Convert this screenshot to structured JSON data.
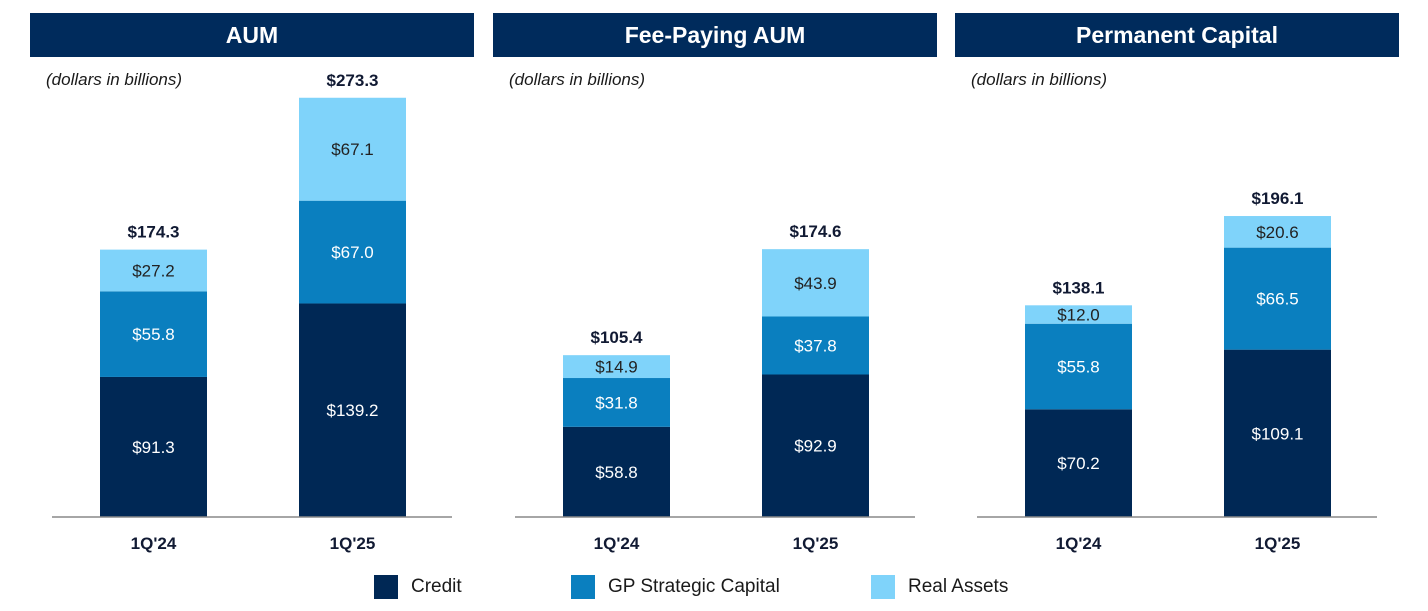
{
  "colors": {
    "header_bg": "#002B5C",
    "credit": "#002855",
    "gp_strategic_capital": "#0A7FBF",
    "real_assets": "#7FD3FA",
    "axis": "#888888"
  },
  "legend": [
    {
      "name": "Credit",
      "color": "#002855"
    },
    {
      "name": "GP Strategic Capital",
      "color": "#0A7FBF"
    },
    {
      "name": "Real Assets",
      "color": "#7FD3FA"
    }
  ],
  "panels": [
    {
      "title": "AUM",
      "unit": "(dollars in billions)"
    },
    {
      "title": "Fee-Paying AUM",
      "unit": "(dollars in billions)"
    },
    {
      "title": "Permanent Capital",
      "unit": "(dollars in billions)"
    }
  ],
  "chart_data": [
    {
      "type": "bar",
      "stacked": true,
      "title": "AUM",
      "subtitle": "(dollars in billions)",
      "categories": [
        "1Q'24",
        "1Q'25"
      ],
      "series": [
        {
          "name": "Credit",
          "values": [
            91.3,
            139.2
          ],
          "labels": [
            "$91.3",
            "$139.2"
          ]
        },
        {
          "name": "GP Strategic Capital",
          "values": [
            55.8,
            67.0
          ],
          "labels": [
            "$55.8",
            "$67.0"
          ]
        },
        {
          "name": "Real Assets",
          "values": [
            27.2,
            67.1
          ],
          "labels": [
            "$27.2",
            "$67.1"
          ]
        }
      ],
      "totals": [
        174.3,
        273.3
      ],
      "total_labels": [
        "$174.3",
        "$273.3"
      ],
      "ylim": [
        0,
        280
      ]
    },
    {
      "type": "bar",
      "stacked": true,
      "title": "Fee-Paying AUM",
      "subtitle": "(dollars in billions)",
      "categories": [
        "1Q'24",
        "1Q'25"
      ],
      "series": [
        {
          "name": "Credit",
          "values": [
            58.8,
            92.9
          ],
          "labels": [
            "$58.8",
            "$92.9"
          ]
        },
        {
          "name": "GP Strategic Capital",
          "values": [
            31.8,
            37.8
          ],
          "labels": [
            "$31.8",
            "$37.8"
          ]
        },
        {
          "name": "Real Assets",
          "values": [
            14.9,
            43.9
          ],
          "labels": [
            "$14.9",
            "$43.9"
          ]
        }
      ],
      "totals": [
        105.4,
        174.6
      ],
      "total_labels": [
        "$105.4",
        "$174.6"
      ],
      "ylim": [
        0,
        180
      ]
    },
    {
      "type": "bar",
      "stacked": true,
      "title": "Permanent Capital",
      "subtitle": "(dollars in billions)",
      "categories": [
        "1Q'24",
        "1Q'25"
      ],
      "series": [
        {
          "name": "Credit",
          "values": [
            70.2,
            109.1
          ],
          "labels": [
            "$70.2",
            "$109.1"
          ]
        },
        {
          "name": "GP Strategic Capital",
          "values": [
            55.8,
            66.5
          ],
          "labels": [
            "$55.8",
            "$66.5"
          ]
        },
        {
          "name": "Real Assets",
          "values": [
            12.0,
            20.6
          ],
          "labels": [
            "$12.0",
            "$20.6"
          ]
        }
      ],
      "totals": [
        138.1,
        196.1
      ],
      "total_labels": [
        "$138.1",
        "$196.1"
      ],
      "ylim": [
        0,
        200
      ]
    }
  ]
}
